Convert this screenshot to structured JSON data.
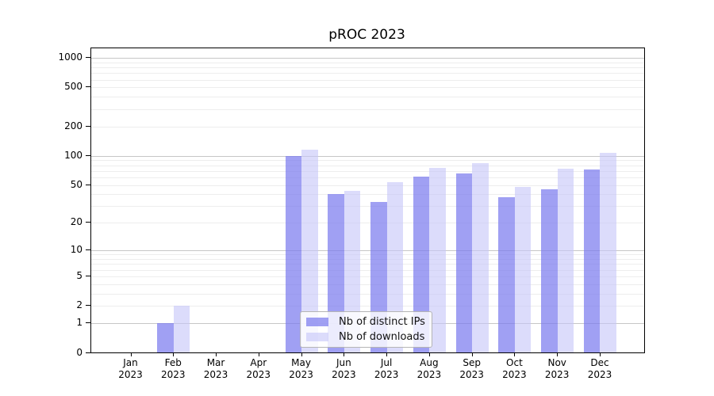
{
  "title": "pROC 2023",
  "legend": {
    "items": [
      {
        "label": "Nb of distinct IPs",
        "color": "rgba(123,123,238,0.72)"
      },
      {
        "label": "Nb of downloads",
        "color": "rgba(199,199,248,0.62)"
      }
    ]
  },
  "chart_data": {
    "type": "bar",
    "title": "pROC 2023",
    "categories": [
      "Jan",
      "Feb",
      "Mar",
      "Apr",
      "May",
      "Jun",
      "Jul",
      "Aug",
      "Sep",
      "Oct",
      "Nov",
      "Dec"
    ],
    "year": "2023",
    "series": [
      {
        "name": "Nb of distinct IPs",
        "color": "rgba(123,123,238,0.72)",
        "values": [
          0,
          1,
          0,
          0,
          100,
          40,
          33,
          61,
          66,
          37,
          45,
          72
        ]
      },
      {
        "name": "Nb of downloads",
        "color": "rgba(199,199,248,0.62)",
        "values": [
          0,
          2,
          0,
          0,
          116,
          43,
          53,
          75,
          84,
          48,
          74,
          108
        ]
      }
    ],
    "yscale": "log1p",
    "yticks": [
      0,
      1,
      2,
      5,
      10,
      20,
      50,
      100,
      200,
      500,
      1000
    ],
    "ylim": [
      0,
      1250
    ],
    "xlabel": "",
    "ylabel": "",
    "grid": "horizontal; darker lines at 1,10,100,1000; faint lines at 2-9 of each decade",
    "legend_position": "inside lower-center"
  },
  "colors": {
    "background": "#ffffff",
    "axis_frame": "#000000",
    "major_grid": "#c6c6c6",
    "minor_grid": "#ededed",
    "legend_border": "#b5b5b5",
    "legend_background": "rgba(255,255,255,0.8)",
    "bar_ips": "rgba(123,123,238,0.72)",
    "bar_downloads": "rgba(199,199,248,0.62)"
  }
}
